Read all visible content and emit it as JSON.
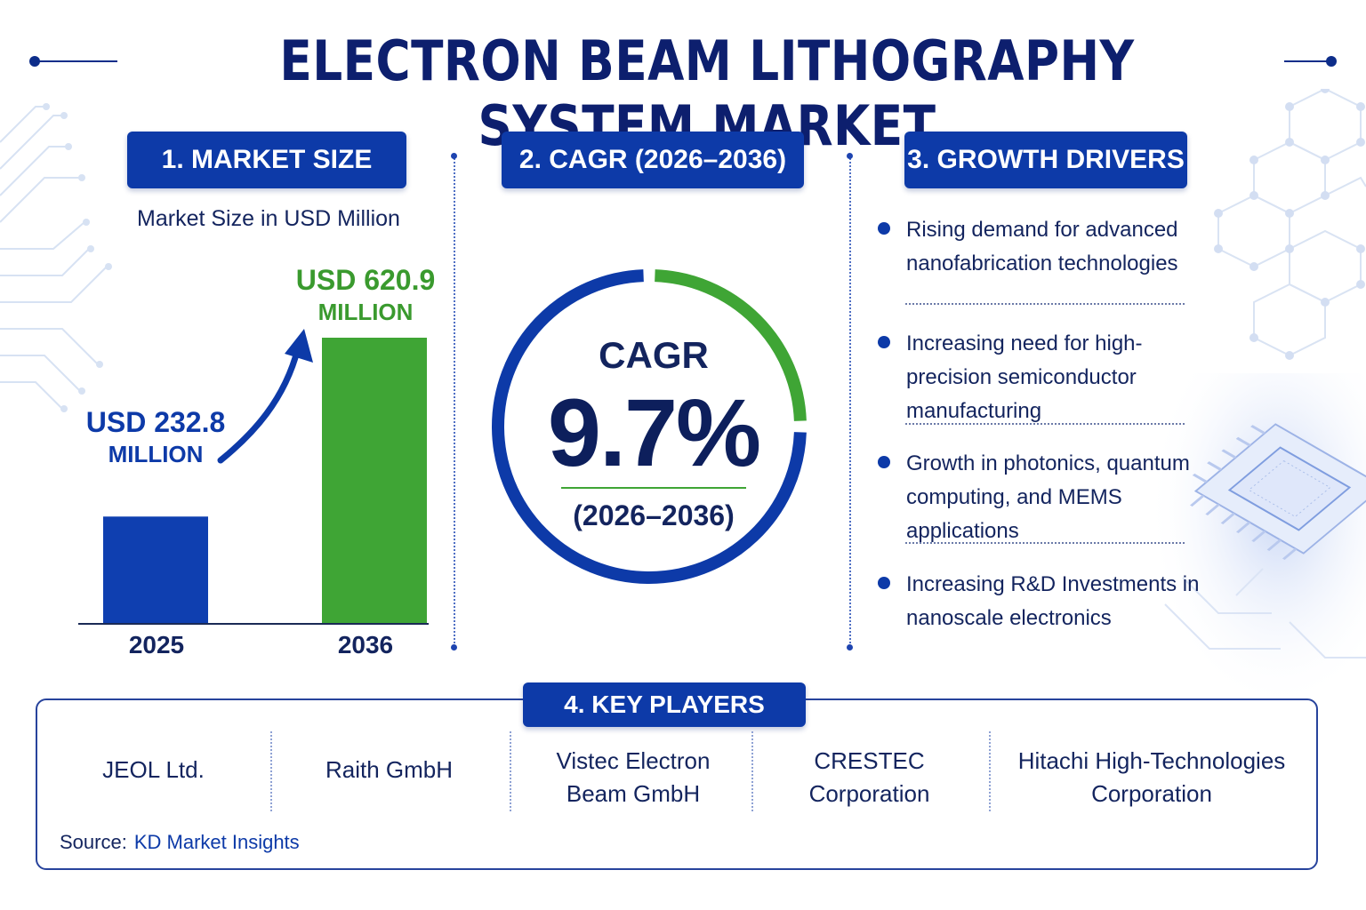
{
  "title": "ELECTRON BEAM LITHOGRAPHY SYSTEM MARKET",
  "colors": {
    "navy": "#0d1f5c",
    "blue": "#0d3aa8",
    "bar_2025": "#0f3fb0",
    "bar_2036": "#3fa535",
    "green_text": "#3a9a2e"
  },
  "sections": {
    "market_size": {
      "header": "1. MARKET SIZE",
      "subtitle": "Market Size in USD Million",
      "label_2025_value": "USD 232.8",
      "label_2025_unit": "MILLION",
      "label_2036_value": "USD 620.9",
      "label_2036_unit": "MILLION"
    },
    "cagr": {
      "header": "2. CAGR (2026–2036)",
      "word": "CAGR",
      "value": "9.7%",
      "period": "(2026–2036)"
    },
    "growth_drivers": {
      "header": "3. GROWTH DRIVERS",
      "items": [
        "Rising demand for advanced nanofabrication technologies",
        "Increasing need for high-precision semiconductor manufacturing",
        "Growth in photonics, quantum computing, and MEMS applications",
        "Increasing R&D Investments in nanoscale electronics"
      ]
    },
    "key_players": {
      "header": "4. KEY PLAYERS",
      "players": [
        "JEOL Ltd.",
        "Raith GmbH",
        "Vistec Electron Beam GmbH",
        "CRESTEC Corporation",
        "Hitachi High-Technologies Corporation"
      ]
    }
  },
  "source": {
    "label": "Source:",
    "name": "KD Market Insights"
  },
  "chart_data": [
    {
      "type": "bar",
      "categories": [
        "2025",
        "2036"
      ],
      "values": [
        232.8,
        620.9
      ],
      "unit": "USD Million",
      "colors": [
        "#0f3fb0",
        "#3fa535"
      ],
      "title": "1. MARKET SIZE",
      "ylabel": "Market Size in USD Million",
      "grid": false
    },
    {
      "type": "pie",
      "style": "donut",
      "label": "CAGR",
      "value_percent": 9.7,
      "period": "(2026–2036)",
      "segments": [
        {
          "color": "#3fa535",
          "fraction": 0.25
        },
        {
          "color": "#0d3aa8",
          "fraction": 0.75
        }
      ]
    }
  ]
}
